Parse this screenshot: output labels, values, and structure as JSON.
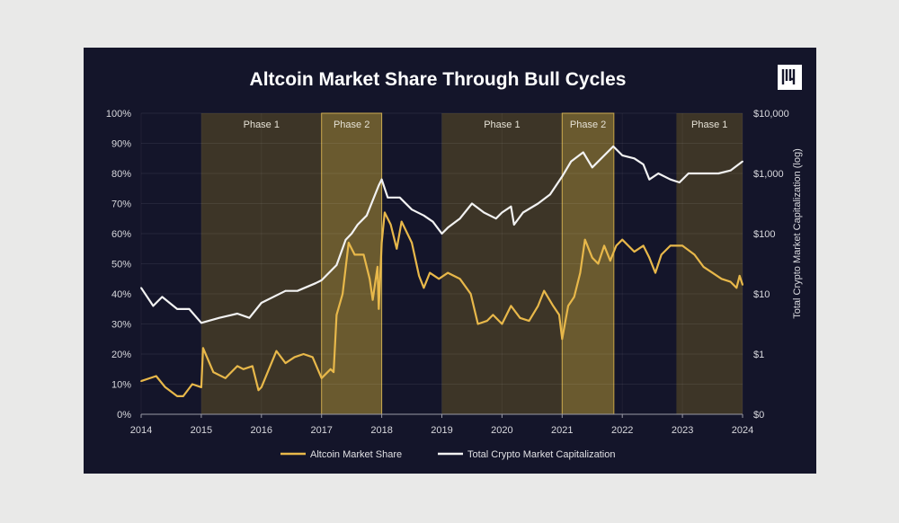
{
  "chart_data": {
    "type": "line",
    "title": "Altcoin Market Share Through Bull Cycles",
    "xlabel": "",
    "ylabel_left": "",
    "ylabel_right": "Total Crypto Market Capitalization (log)",
    "xlim": [
      2014,
      2024
    ],
    "x_ticks": [
      "2014",
      "2015",
      "2016",
      "2017",
      "2018",
      "2019",
      "2020",
      "2021",
      "2022",
      "2023",
      "2024"
    ],
    "ylim_left": [
      0,
      100
    ],
    "y_ticks_left": [
      "0%",
      "10%",
      "20%",
      "30%",
      "40%",
      "50%",
      "60%",
      "70%",
      "80%",
      "90%",
      "100%"
    ],
    "y_scale_right": "log",
    "y_ticks_right": [
      "$0",
      "$1",
      "$10",
      "$100",
      "$1,000",
      "$10,000"
    ],
    "grid": true,
    "legend_placement": "bottom",
    "phases": [
      {
        "label": "Phase 1",
        "start": 2015.0,
        "end": 2017.0,
        "kind": "phase1"
      },
      {
        "label": "Phase 2",
        "start": 2017.0,
        "end": 2018.0,
        "kind": "phase2"
      },
      {
        "label": "Phase 1",
        "start": 2019.0,
        "end": 2021.0,
        "kind": "phase1"
      },
      {
        "label": "Phase 2",
        "start": 2021.0,
        "end": 2021.86,
        "kind": "phase2"
      },
      {
        "label": "Phase 1",
        "start": 2022.9,
        "end": 2024.0,
        "kind": "phase1"
      }
    ],
    "series": [
      {
        "name": "Altcoin Market Share",
        "axis": "left",
        "color": "#e8b84a",
        "points": [
          [
            2014.0,
            11
          ],
          [
            2014.25,
            12.7
          ],
          [
            2014.4,
            9
          ],
          [
            2014.6,
            6
          ],
          [
            2014.7,
            6
          ],
          [
            2014.85,
            10
          ],
          [
            2015.0,
            9
          ],
          [
            2015.03,
            22
          ],
          [
            2015.2,
            14
          ],
          [
            2015.4,
            12
          ],
          [
            2015.6,
            16
          ],
          [
            2015.7,
            15
          ],
          [
            2015.85,
            16
          ],
          [
            2015.95,
            8
          ],
          [
            2016.0,
            9
          ],
          [
            2016.25,
            21
          ],
          [
            2016.4,
            17
          ],
          [
            2016.55,
            19
          ],
          [
            2016.7,
            20
          ],
          [
            2016.85,
            19
          ],
          [
            2017.0,
            12
          ],
          [
            2017.15,
            15
          ],
          [
            2017.2,
            14
          ],
          [
            2017.25,
            33
          ],
          [
            2017.35,
            40
          ],
          [
            2017.45,
            57
          ],
          [
            2017.55,
            53
          ],
          [
            2017.7,
            53
          ],
          [
            2017.8,
            45
          ],
          [
            2017.85,
            38
          ],
          [
            2017.93,
            49
          ],
          [
            2017.95,
            35
          ],
          [
            2018.0,
            57
          ],
          [
            2018.05,
            67
          ],
          [
            2018.15,
            63
          ],
          [
            2018.25,
            55
          ],
          [
            2018.33,
            64
          ],
          [
            2018.5,
            57
          ],
          [
            2018.62,
            46
          ],
          [
            2018.7,
            42
          ],
          [
            2018.8,
            47
          ],
          [
            2018.95,
            45
          ],
          [
            2019.1,
            47
          ],
          [
            2019.3,
            45
          ],
          [
            2019.48,
            40
          ],
          [
            2019.6,
            30
          ],
          [
            2019.75,
            31
          ],
          [
            2019.85,
            33
          ],
          [
            2020.0,
            30
          ],
          [
            2020.15,
            36
          ],
          [
            2020.3,
            32
          ],
          [
            2020.45,
            31
          ],
          [
            2020.6,
            36
          ],
          [
            2020.7,
            41
          ],
          [
            2020.85,
            36
          ],
          [
            2020.95,
            33
          ],
          [
            2021.0,
            25
          ],
          [
            2021.1,
            36
          ],
          [
            2021.2,
            39
          ],
          [
            2021.3,
            47
          ],
          [
            2021.38,
            58
          ],
          [
            2021.5,
            52
          ],
          [
            2021.6,
            50
          ],
          [
            2021.7,
            56
          ],
          [
            2021.8,
            51
          ],
          [
            2021.9,
            56
          ],
          [
            2022.0,
            58
          ],
          [
            2022.2,
            54
          ],
          [
            2022.35,
            56
          ],
          [
            2022.45,
            52
          ],
          [
            2022.55,
            47
          ],
          [
            2022.65,
            53
          ],
          [
            2022.8,
            56
          ],
          [
            2023.0,
            56
          ],
          [
            2023.2,
            53
          ],
          [
            2023.35,
            49
          ],
          [
            2023.5,
            47
          ],
          [
            2023.65,
            45
          ],
          [
            2023.8,
            44
          ],
          [
            2023.9,
            42
          ],
          [
            2023.95,
            46
          ],
          [
            2024.0,
            43
          ]
        ]
      },
      {
        "name": "Total Crypto Market Capitalization",
        "axis": "right",
        "color": "#f2f2f2",
        "points": [
          [
            2014.0,
            12.6
          ],
          [
            2014.2,
            6.3
          ],
          [
            2014.35,
            8.9
          ],
          [
            2014.6,
            5.6
          ],
          [
            2014.8,
            5.6
          ],
          [
            2015.0,
            3.3
          ],
          [
            2015.3,
            4.0
          ],
          [
            2015.6,
            4.7
          ],
          [
            2015.8,
            4.0
          ],
          [
            2016.0,
            7.1
          ],
          [
            2016.4,
            11.2
          ],
          [
            2016.6,
            11.2
          ],
          [
            2016.9,
            15
          ],
          [
            2017.0,
            16.8
          ],
          [
            2017.25,
            30
          ],
          [
            2017.4,
            79
          ],
          [
            2017.5,
            100
          ],
          [
            2017.6,
            141
          ],
          [
            2017.75,
            200
          ],
          [
            2017.95,
            631
          ],
          [
            2018.0,
            794
          ],
          [
            2018.1,
            398
          ],
          [
            2018.3,
            398
          ],
          [
            2018.5,
            251
          ],
          [
            2018.7,
            200
          ],
          [
            2018.85,
            158
          ],
          [
            2019.0,
            100
          ],
          [
            2019.1,
            126
          ],
          [
            2019.3,
            178
          ],
          [
            2019.5,
            316
          ],
          [
            2019.7,
            224
          ],
          [
            2019.9,
            178
          ],
          [
            2020.0,
            224
          ],
          [
            2020.15,
            282
          ],
          [
            2020.2,
            141
          ],
          [
            2020.35,
            224
          ],
          [
            2020.6,
            316
          ],
          [
            2020.8,
            447
          ],
          [
            2021.0,
            891
          ],
          [
            2021.15,
            1585
          ],
          [
            2021.35,
            2239
          ],
          [
            2021.5,
            1259
          ],
          [
            2021.65,
            1778
          ],
          [
            2021.85,
            2818
          ],
          [
            2022.0,
            1995
          ],
          [
            2022.2,
            1778
          ],
          [
            2022.35,
            1413
          ],
          [
            2022.45,
            794
          ],
          [
            2022.6,
            1000
          ],
          [
            2022.8,
            794
          ],
          [
            2022.95,
            708
          ],
          [
            2023.1,
            1000
          ],
          [
            2023.3,
            1000
          ],
          [
            2023.6,
            1000
          ],
          [
            2023.8,
            1122
          ],
          [
            2024.0,
            1585
          ]
        ]
      }
    ]
  },
  "colors": {
    "background": "#14152a",
    "phase1": "#3d3527",
    "phase2": "#6a5a2f",
    "phase2_border": "#c9a546",
    "grid": "#2a2b3e"
  },
  "logo": {
    "icon": "brand-logo-icon"
  }
}
